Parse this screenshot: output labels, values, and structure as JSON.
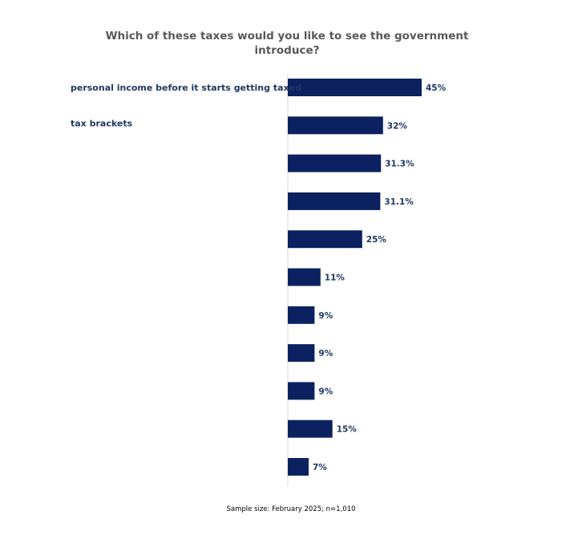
{
  "chart_data": {
    "type": "bar",
    "orientation": "horizontal",
    "title": "Which of these taxes would you like to see the government introduce?",
    "categories": [
      "personal income before it starts getting taxed",
      "tax brackets",
      "",
      "",
      "",
      "",
      "",
      "",
      "",
      "",
      ""
    ],
    "values": [
      45,
      32,
      31.3,
      31.1,
      25,
      11,
      9,
      9,
      9,
      15,
      7
    ],
    "value_labels": [
      "45%",
      "32%",
      "31.3%",
      "31.1%",
      "25%",
      "11%",
      "9%",
      "9%",
      "9%",
      "15%",
      "7%"
    ],
    "xlim": [
      0,
      100
    ],
    "grid": false,
    "legend": "none",
    "bar_color": "#0b2160",
    "label_color": "#1f3864",
    "title_color": "#595959"
  },
  "footnote": "Sample size: February 2025; n=1,010"
}
